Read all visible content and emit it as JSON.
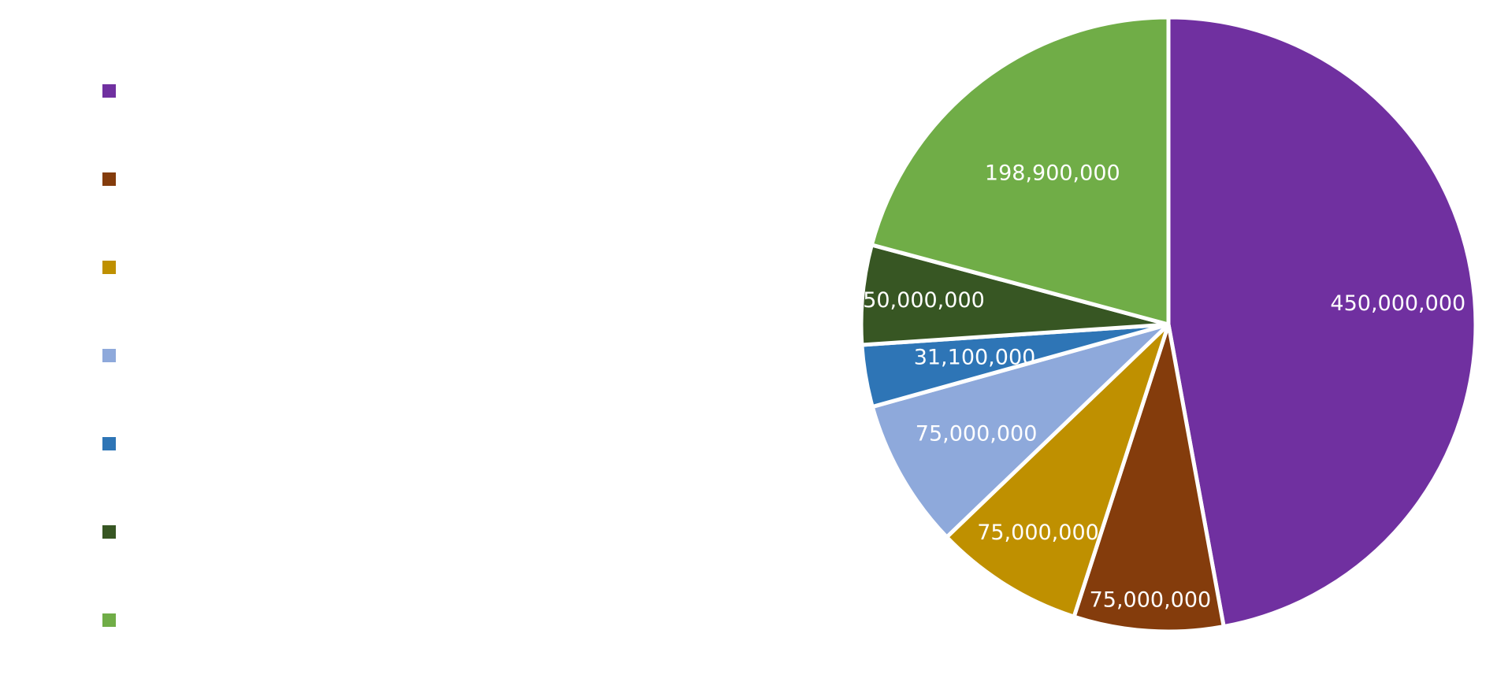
{
  "chart_data": {
    "type": "pie",
    "title": "",
    "start_angle_deg": 0,
    "direction": "clockwise",
    "legend_position": "left",
    "slices": [
      {
        "label": "",
        "value": 450000000,
        "value_label": "450,000,000",
        "color": "#7030A0"
      },
      {
        "label": "",
        "value": 75000000,
        "value_label": "75,000,000",
        "color": "#843C0C"
      },
      {
        "label": "",
        "value": 75000000,
        "value_label": "75,000,000",
        "color": "#BF9000"
      },
      {
        "label": "",
        "value": 75000000,
        "value_label": "75,000,000",
        "color": "#8EA9DB"
      },
      {
        "label": "",
        "value": 31100000,
        "value_label": "31,100,000",
        "color": "#2E75B6"
      },
      {
        "label": "",
        "value": 50000000,
        "value_label": "50,000,000",
        "color": "#375623"
      },
      {
        "label": "",
        "value": 198900000,
        "value_label": "198,900,000",
        "color": "#70AD47"
      }
    ]
  }
}
